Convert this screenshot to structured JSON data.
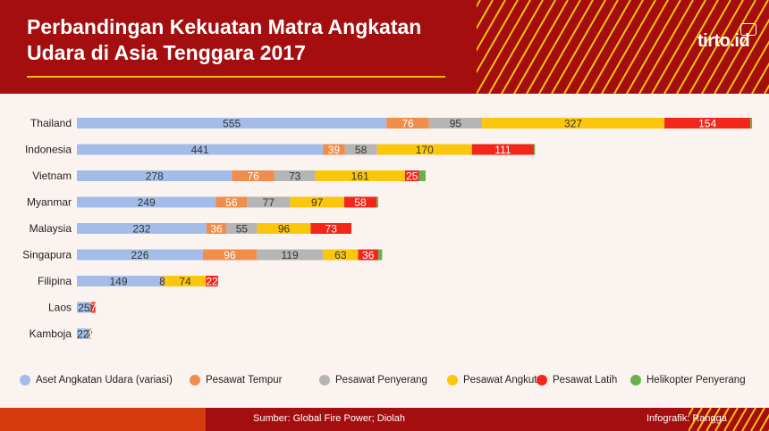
{
  "header": {
    "title_line1": "Perbandingan Kekuatan Matra Angkatan",
    "title_line2": "Udara di Asia Tenggara 2017",
    "logo": "tirto.id"
  },
  "footer": {
    "source": "Sumber: Global Fire Power; Diolah",
    "credit": "Infografik: Rangga"
  },
  "colors": {
    "header_bg": "#a40e0e",
    "stripe": "#f4c20d",
    "footer_orange": "#d63a0f"
  },
  "chart_data": {
    "type": "bar",
    "orientation": "horizontal",
    "stacked": true,
    "title": "Perbandingan Kekuatan Matra Angkatan Udara di Asia Tenggara 2017",
    "categories": [
      "Thailand",
      "Indonesia",
      "Vietnam",
      "Myanmar",
      "Malaysia",
      "Singapura",
      "Filipina",
      "Laos",
      "Kamboja"
    ],
    "series": [
      {
        "name": "Aset Angkatan Udara (variasi)",
        "color": "#a4bde8",
        "values": [
          555,
          441,
          278,
          249,
          232,
          226,
          149,
          25,
          22
        ]
      },
      {
        "name": "Pesawat Tempur",
        "color": "#f08d4a",
        "values": [
          76,
          39,
          76,
          56,
          36,
          96,
          0,
          0,
          0
        ]
      },
      {
        "name": "Pesawat Penyerang",
        "color": "#b5b5b5",
        "values": [
          95,
          58,
          73,
          77,
          55,
          119,
          8,
          0,
          0
        ]
      },
      {
        "name": "Pesawat Angkut",
        "color": "#fbc70c",
        "values": [
          327,
          170,
          161,
          97,
          96,
          63,
          74,
          1,
          2
        ]
      },
      {
        "name": "Pesawat Latih",
        "color": "#f2261b",
        "values": [
          154,
          111,
          25,
          58,
          73,
          36,
          22,
          7,
          1
        ]
      },
      {
        "name": "Helikopter Penyerang",
        "color": "#6ab04c",
        "values": [
          3,
          2,
          12,
          3,
          0,
          7,
          0,
          0,
          0
        ]
      }
    ],
    "labels": [
      [
        "555",
        "76",
        "95",
        "327",
        "154",
        ""
      ],
      [
        "441",
        "39",
        "58",
        "170",
        "111",
        ""
      ],
      [
        "278",
        "76",
        "73",
        "161",
        "25",
        ""
      ],
      [
        "249",
        "56",
        "77",
        "97",
        "58",
        ""
      ],
      [
        "232",
        "36",
        "55",
        "96",
        "73",
        ""
      ],
      [
        "226",
        "96",
        "119",
        "63",
        "36",
        ""
      ],
      [
        "149",
        "",
        "8",
        "74",
        "22",
        ""
      ],
      [
        "25",
        "",
        "",
        "1",
        "7",
        ""
      ],
      [
        "22",
        "",
        "",
        "2",
        "1",
        ""
      ]
    ],
    "legend_position": "bottom",
    "grid": false
  }
}
